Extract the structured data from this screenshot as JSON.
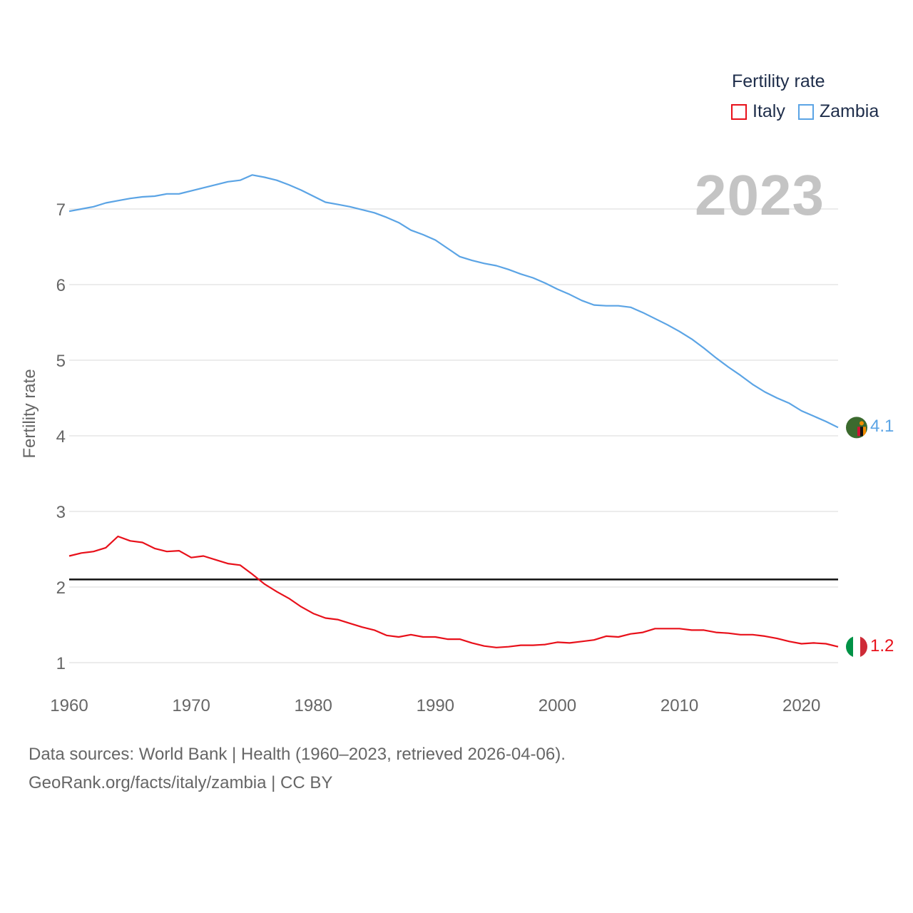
{
  "chart_data": {
    "type": "line",
    "title": "Fertility rate",
    "ylabel": "Fertility rate",
    "xlabel": "",
    "xlim": [
      1960,
      2023
    ],
    "ylim": [
      0.7,
      8.0
    ],
    "yticks": [
      1,
      2,
      3,
      4,
      5,
      6,
      7
    ],
    "xticks": [
      1960,
      1970,
      1980,
      1990,
      2000,
      2010,
      2020
    ],
    "grid": true,
    "legend_position": "top-right",
    "current_year": "2023",
    "reference_line": {
      "y": 2.1
    },
    "x": [
      1960,
      1961,
      1962,
      1963,
      1964,
      1965,
      1966,
      1967,
      1968,
      1969,
      1970,
      1971,
      1972,
      1973,
      1974,
      1975,
      1976,
      1977,
      1978,
      1979,
      1980,
      1981,
      1982,
      1983,
      1984,
      1985,
      1986,
      1987,
      1988,
      1989,
      1990,
      1991,
      1992,
      1993,
      1994,
      1995,
      1996,
      1997,
      1998,
      1999,
      2000,
      2001,
      2002,
      2003,
      2004,
      2005,
      2006,
      2007,
      2008,
      2009,
      2010,
      2011,
      2012,
      2013,
      2014,
      2015,
      2016,
      2017,
      2018,
      2019,
      2020,
      2021,
      2022,
      2023
    ],
    "series": [
      {
        "name": "Italy",
        "color": "#e8101a",
        "end_label": "1.2",
        "values": [
          2.41,
          2.45,
          2.47,
          2.52,
          2.67,
          2.61,
          2.59,
          2.51,
          2.47,
          2.48,
          2.39,
          2.41,
          2.36,
          2.31,
          2.29,
          2.17,
          2.04,
          1.94,
          1.85,
          1.74,
          1.65,
          1.59,
          1.57,
          1.52,
          1.47,
          1.43,
          1.36,
          1.34,
          1.37,
          1.34,
          1.34,
          1.31,
          1.31,
          1.26,
          1.22,
          1.2,
          1.21,
          1.23,
          1.23,
          1.24,
          1.27,
          1.26,
          1.28,
          1.3,
          1.35,
          1.34,
          1.38,
          1.4,
          1.45,
          1.45,
          1.45,
          1.43,
          1.43,
          1.4,
          1.39,
          1.37,
          1.37,
          1.35,
          1.32,
          1.28,
          1.25,
          1.26,
          1.25,
          1.21
        ]
      },
      {
        "name": "Zambia",
        "color": "#5ba4e5",
        "end_label": "4.1",
        "values": [
          6.97,
          7.0,
          7.03,
          7.08,
          7.11,
          7.14,
          7.16,
          7.17,
          7.2,
          7.2,
          7.24,
          7.28,
          7.32,
          7.36,
          7.38,
          7.45,
          7.42,
          7.38,
          7.32,
          7.25,
          7.17,
          7.09,
          7.06,
          7.03,
          6.99,
          6.95,
          6.89,
          6.82,
          6.72,
          6.66,
          6.59,
          6.48,
          6.37,
          6.32,
          6.28,
          6.25,
          6.2,
          6.14,
          6.09,
          6.02,
          5.94,
          5.87,
          5.79,
          5.73,
          5.72,
          5.72,
          5.7,
          5.63,
          5.55,
          5.47,
          5.38,
          5.28,
          5.16,
          5.03,
          4.91,
          4.8,
          4.68,
          4.58,
          4.5,
          4.43,
          4.33,
          4.26,
          4.19,
          4.11
        ]
      }
    ]
  },
  "legend": {
    "title": "Fertility rate",
    "items": [
      {
        "label": "Italy",
        "color": "#e8101a"
      },
      {
        "label": "Zambia",
        "color": "#5ba4e5"
      }
    ]
  },
  "footer": {
    "line1": "Data sources: World Bank | Health (1960–2023, retrieved 2026-04-06).",
    "line2": "GeoRank.org/facts/italy/zambia | CC BY"
  }
}
